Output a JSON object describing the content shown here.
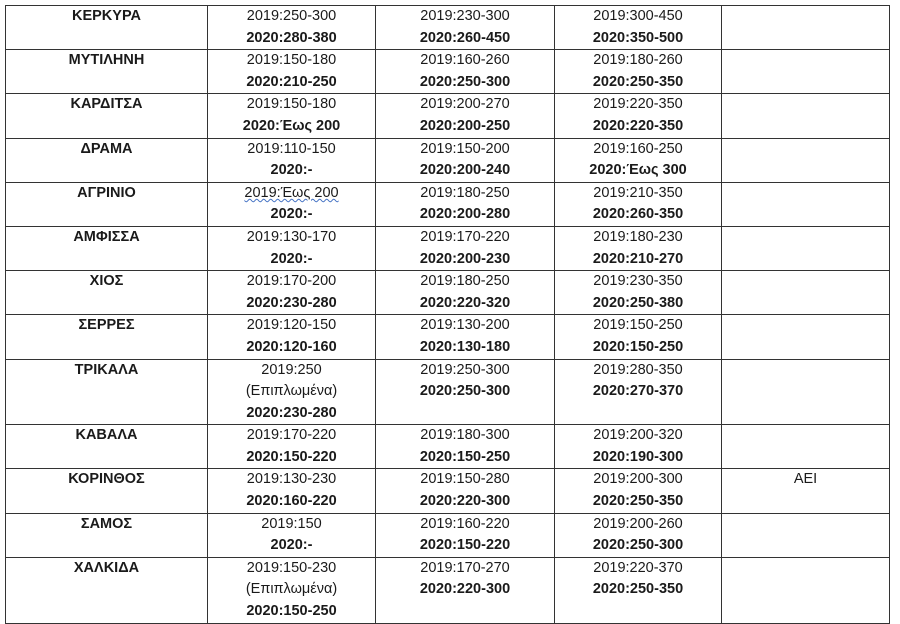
{
  "table": {
    "rows": [
      {
        "city": "ΚΕΡΚΥΡΑ",
        "cells": [
          [
            {
              "t": "2019:250-300",
              "b": false
            },
            {
              "t": "2020:280-380",
              "b": true
            }
          ],
          [
            {
              "t": "2019:230-300",
              "b": false
            },
            {
              "t": "2020:260-450",
              "b": true
            }
          ],
          [
            {
              "t": "2019:300-450",
              "b": false
            },
            {
              "t": "2020:350-500",
              "b": true
            }
          ]
        ],
        "note": ""
      },
      {
        "city": "ΜΥΤΙΛΗΝΗ",
        "cells": [
          [
            {
              "t": "2019:150-180",
              "b": false
            },
            {
              "t": "2020:210-250",
              "b": true
            }
          ],
          [
            {
              "t": "2019:160-260",
              "b": false
            },
            {
              "t": "2020:250-300",
              "b": true
            }
          ],
          [
            {
              "t": "2019:180-260",
              "b": false
            },
            {
              "t": "2020:250-350",
              "b": true
            }
          ]
        ],
        "note": ""
      },
      {
        "city": "ΚΑΡΔΙΤΣΑ",
        "cells": [
          [
            {
              "t": "2019:150-180",
              "b": false
            },
            {
              "t": "2020:Έως 200",
              "b": true
            }
          ],
          [
            {
              "t": "2019:200-270",
              "b": false
            },
            {
              "t": "2020:200-250",
              "b": true
            }
          ],
          [
            {
              "t": "2019:220-350",
              "b": false
            },
            {
              "t": "2020:220-350",
              "b": true
            }
          ]
        ],
        "note": ""
      },
      {
        "city": "ΔΡΑΜΑ",
        "cells": [
          [
            {
              "t": "2019:110-150",
              "b": false
            },
            {
              "t": "2020:-",
              "b": true
            }
          ],
          [
            {
              "t": "2019:150-200",
              "b": false
            },
            {
              "t": "2020:200-240",
              "b": true
            }
          ],
          [
            {
              "t": "2019:160-250",
              "b": false
            },
            {
              "t": "2020:Έως 300",
              "b": true
            }
          ]
        ],
        "note": ""
      },
      {
        "city": "ΑΓΡΙΝΙΟ",
        "cells": [
          [
            {
              "t": "2019:Έως 200",
              "b": false,
              "spell": true
            },
            {
              "t": "2020:-",
              "b": true
            }
          ],
          [
            {
              "t": "2019:180-250",
              "b": false
            },
            {
              "t": "2020:200-280",
              "b": true
            }
          ],
          [
            {
              "t": "2019:210-350",
              "b": false
            },
            {
              "t": "2020:260-350",
              "b": true
            }
          ]
        ],
        "note": ""
      },
      {
        "city": "ΑΜΦΙΣΣΑ",
        "cells": [
          [
            {
              "t": "2019:130-170",
              "b": false
            },
            {
              "t": "2020:-",
              "b": true
            }
          ],
          [
            {
              "t": "2019:170-220",
              "b": false
            },
            {
              "t": "2020:200-230",
              "b": true
            }
          ],
          [
            {
              "t": "2019:180-230",
              "b": false
            },
            {
              "t": "2020:210-270",
              "b": true
            }
          ]
        ],
        "note": ""
      },
      {
        "city": "ΧΙΟΣ",
        "cells": [
          [
            {
              "t": "2019:170-200",
              "b": false
            },
            {
              "t": "2020:230-280",
              "b": true
            }
          ],
          [
            {
              "t": "2019:180-250",
              "b": false
            },
            {
              "t": "2020:220-320",
              "b": true
            }
          ],
          [
            {
              "t": "2019:230-350",
              "b": false
            },
            {
              "t": "2020:250-380",
              "b": true
            }
          ]
        ],
        "note": ""
      },
      {
        "city": "ΣΕΡΡΕΣ",
        "cells": [
          [
            {
              "t": "2019:120-150",
              "b": false
            },
            {
              "t": "2020:120-160",
              "b": true
            }
          ],
          [
            {
              "t": "2019:130-200",
              "b": false
            },
            {
              "t": "2020:130-180",
              "b": true
            }
          ],
          [
            {
              "t": "2019:150-250",
              "b": false
            },
            {
              "t": "2020:150-250",
              "b": true
            }
          ]
        ],
        "note": ""
      },
      {
        "city": "ΤΡΙΚΑΛΑ",
        "cells": [
          [
            {
              "t": "2019:250",
              "b": false
            },
            {
              "t": "(Επιπλωμένα)",
              "b": false
            },
            {
              "t": "2020:230-280",
              "b": true
            }
          ],
          [
            {
              "t": "2019:250-300",
              "b": false
            },
            {
              "t": "2020:250-300",
              "b": true
            }
          ],
          [
            {
              "t": "2019:280-350",
              "b": false
            },
            {
              "t": "2020:270-370",
              "b": true
            }
          ]
        ],
        "note": ""
      },
      {
        "city": "ΚΑΒΑΛΑ",
        "cells": [
          [
            {
              "t": "2019:170-220",
              "b": false
            },
            {
              "t": "2020:150-220",
              "b": true
            }
          ],
          [
            {
              "t": "2019:180-300",
              "b": false
            },
            {
              "t": "2020:150-250",
              "b": true
            }
          ],
          [
            {
              "t": "2019:200-320",
              "b": false
            },
            {
              "t": "2020:190-300",
              "b": true
            }
          ]
        ],
        "note": ""
      },
      {
        "city": "ΚΟΡΙΝΘΟΣ",
        "cells": [
          [
            {
              "t": "2019:130-230",
              "b": false
            },
            {
              "t": "2020:160-220",
              "b": true
            }
          ],
          [
            {
              "t": "2019:150-280",
              "b": false
            },
            {
              "t": "2020:220-300",
              "b": true
            }
          ],
          [
            {
              "t": "2019:200-300",
              "b": false
            },
            {
              "t": "2020:250-350",
              "b": true
            }
          ]
        ],
        "note": "ΑΕΙ"
      },
      {
        "city": "ΣΑΜΟΣ",
        "cells": [
          [
            {
              "t": "2019:150",
              "b": false
            },
            {
              "t": "2020:-",
              "b": true
            }
          ],
          [
            {
              "t": "2019:160-220",
              "b": false
            },
            {
              "t": "2020:150-220",
              "b": true
            }
          ],
          [
            {
              "t": "2019:200-260",
              "b": false
            },
            {
              "t": "2020:250-300",
              "b": true
            }
          ]
        ],
        "note": ""
      },
      {
        "city": "ΧΑΛΚΙΔΑ",
        "cells": [
          [
            {
              "t": "2019:150-230",
              "b": false
            },
            {
              "t": "(Επιπλωμένα)",
              "b": false
            },
            {
              "t": "2020:150-250",
              "b": true
            }
          ],
          [
            {
              "t": "2019:170-270",
              "b": false
            },
            {
              "t": "2020:220-300",
              "b": true
            }
          ],
          [
            {
              "t": "2019:220-370",
              "b": false
            },
            {
              "t": "2020:250-350",
              "b": true
            }
          ]
        ],
        "note": ""
      }
    ]
  }
}
